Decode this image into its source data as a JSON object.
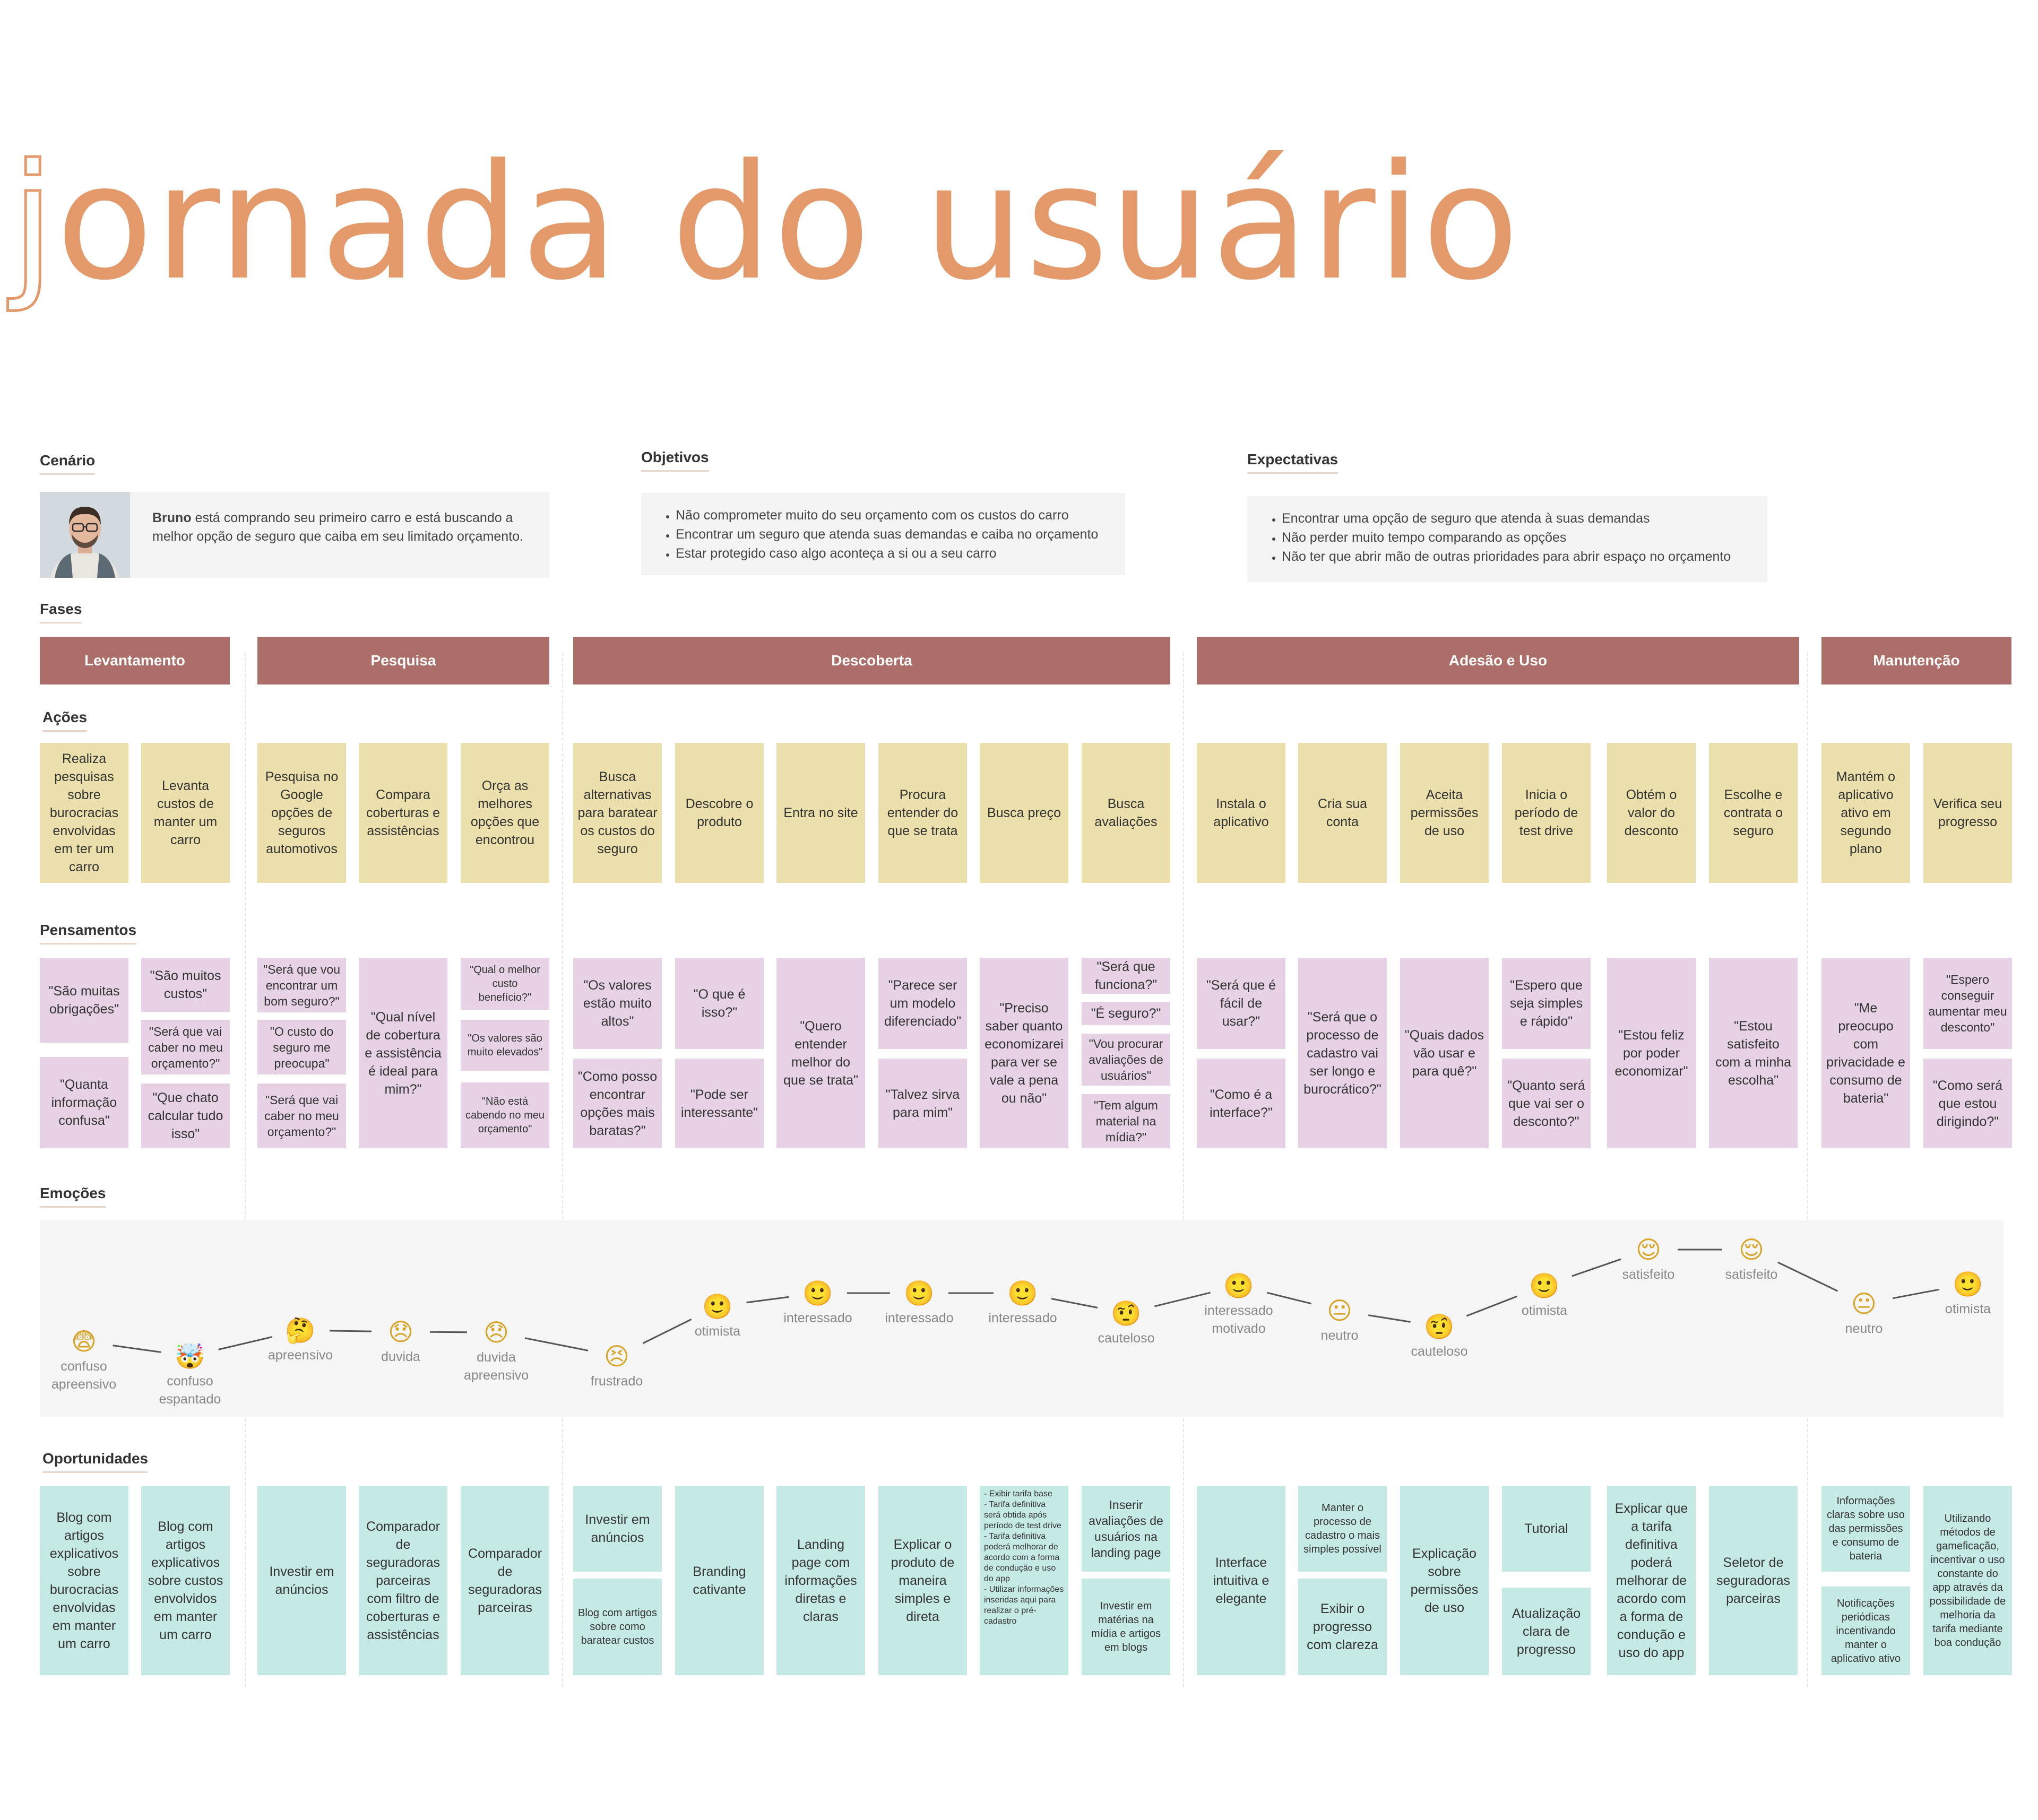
{
  "title": {
    "first_letter": "j",
    "rest": "ornada do usuário"
  },
  "scenario": {
    "label": "Cenário",
    "name": "Bruno",
    "text": " está comprando seu primeiro carro e está buscando a melhor opção de seguro que caiba em seu limitado orçamento."
  },
  "objectives": {
    "label": "Objetivos",
    "items": [
      "Não comprometer muito do seu orçamento com os custos do carro",
      "Encontrar um seguro que atenda suas demandas e caiba no orçamento",
      "Estar protegido caso algo aconteça a si ou a seu carro"
    ]
  },
  "expectations": {
    "label": "Expectativas",
    "items": [
      "Encontrar uma opção de seguro que atenda à suas demandas",
      "Não perder muito tempo comparando as opções",
      "Não ter que abrir mão de outras prioridades para abrir espaço no orçamento"
    ]
  },
  "sections": {
    "phases": "Fases",
    "actions": "Ações",
    "thoughts": "Pensamentos",
    "emotions": "Emoções",
    "opportunities": "Oportunidades"
  },
  "phases": [
    "Levantamento",
    "Pesquisa",
    "Descoberta",
    "Adesão e Uso",
    "Manutenção"
  ],
  "actions": [
    "Realiza pesquisas sobre burocracias envolvidas em ter um carro",
    "Levanta custos de manter um carro",
    "Pesquisa no Google opções de seguros automotivos",
    "Compara coberturas e assistências",
    "Orça as melhores opções que encontrou",
    "Busca alternativas para baratear os custos do seguro",
    "Descobre o produto",
    "Entra no site",
    "Procura entender do que se trata",
    "Busca preço",
    "Busca avaliações",
    "Instala o aplicativo",
    "Cria sua conta",
    "Aceita permissões de uso",
    "Inicia o período de test drive",
    "Obtém o valor do desconto",
    "Escolhe e contrata o seguro",
    "Mantém o aplicativo ativo em segundo plano",
    "Verifica seu progresso"
  ],
  "thoughts": [
    [
      "\"São muitas obrigações\"",
      "\"Quanta informação confusa\""
    ],
    [
      "\"São muitos custos\"",
      "\"Será que vai caber no meu orçamento?\"",
      "\"Que chato calcular tudo isso\""
    ],
    [
      "\"Será que vou encontrar um bom seguro?\"",
      "\"O custo do seguro me preocupa\"",
      "\"Será que vai caber no meu orçamento?\""
    ],
    [
      "\"Qual nível de cobertura e assistência é ideal para mim?\""
    ],
    [
      "\"Qual o melhor custo benefício?\"",
      "\"Os valores são muito elevados\"",
      "\"Não está cabendo no meu orçamento\""
    ],
    [
      "\"Os valores estão muito altos\"",
      "\"Como posso encontrar opções mais baratas?\""
    ],
    [
      "\"O que é isso?\"",
      "\"Pode ser interessante\""
    ],
    [
      "\"Quero entender melhor do que se trata\""
    ],
    [
      "\"Parece ser um modelo diferenciado\"",
      "\"Talvez sirva para mim\""
    ],
    [
      "\"Preciso saber quanto economizarei para ver se vale a pena ou não\""
    ],
    [
      "\"Será que funciona?\"",
      "\"É seguro?\"",
      "\"Vou procurar avaliações de usuários\"",
      "\"Tem algum material na mídia?\""
    ],
    [
      "\"Será que é fácil de usar?\"",
      "\"Como é a interface?\""
    ],
    [
      "\"Será que o processo de cadastro vai ser longo e burocrático?\""
    ],
    [
      "\"Quais dados vão usar e para quê?\""
    ],
    [
      "\"Espero que seja simples e rápido\"",
      "\"Quanto será que vai ser o desconto?\""
    ],
    [
      "\"Estou feliz por poder economizar\""
    ],
    [
      "\"Estou satisfeito com a minha escolha\""
    ],
    [
      "\"Me preocupo com privacidade e consumo de bateria\""
    ],
    [
      "\"Espero conseguir aumentar meu desconto\"",
      "\"Como será que estou dirigindo?\""
    ]
  ],
  "emotions": [
    {
      "icon": "anxious-face-icon",
      "glyph": "😨",
      "label": "confuso apreensivo"
    },
    {
      "icon": "exploding-head-icon",
      "glyph": "🤯",
      "label": "confuso espantado"
    },
    {
      "icon": "thinking-face-icon",
      "glyph": "🤔",
      "label": "apreensivo"
    },
    {
      "icon": "disappointed-face-icon",
      "glyph": "😞",
      "label": "duvida"
    },
    {
      "icon": "disappointed-face-icon",
      "glyph": "😞",
      "label": "duvida apreensivo"
    },
    {
      "icon": "persevering-face-icon",
      "glyph": "😣",
      "label": "frustrado"
    },
    {
      "icon": "smiling-face-icon",
      "glyph": "🙂",
      "label": "otimista"
    },
    {
      "icon": "smiling-face-icon",
      "glyph": "🙂",
      "label": "interessado"
    },
    {
      "icon": "smiling-face-icon",
      "glyph": "🙂",
      "label": "interessado"
    },
    {
      "icon": "smiling-face-icon",
      "glyph": "🙂",
      "label": "interessado"
    },
    {
      "icon": "raised-eyebrow-face-icon",
      "glyph": "🤨",
      "label": "cauteloso"
    },
    {
      "icon": "smiling-face-icon",
      "glyph": "🙂",
      "label": "interessado motivado"
    },
    {
      "icon": "neutral-face-icon",
      "glyph": "😐",
      "label": "neutro"
    },
    {
      "icon": "raised-eyebrow-face-icon",
      "glyph": "🤨",
      "label": "cauteloso"
    },
    {
      "icon": "smiling-face-icon",
      "glyph": "🙂",
      "label": "otimista"
    },
    {
      "icon": "relieved-face-icon",
      "glyph": "😌",
      "label": "satisfeito"
    },
    {
      "icon": "relieved-face-icon",
      "glyph": "😌",
      "label": "satisfeito"
    },
    {
      "icon": "neutral-face-icon",
      "glyph": "😐",
      "label": "neutro"
    },
    {
      "icon": "smiling-face-icon",
      "glyph": "🙂",
      "label": "otimista"
    }
  ],
  "opportunities": [
    [
      "Blog com artigos explicativos sobre burocracias envolvidas em manter um carro"
    ],
    [
      "Blog com artigos explicativos sobre custos envolvidos em manter um carro"
    ],
    [
      "Investir em anúncios"
    ],
    [
      "Comparador de seguradoras parceiras com filtro de coberturas e assistências"
    ],
    [
      "Comparador de seguradoras parceiras"
    ],
    [
      "Investir em anúncios",
      "Blog com artigos sobre como baratear custos"
    ],
    [
      "Branding cativante"
    ],
    [
      "Landing page com informações diretas e claras"
    ],
    [
      "Explicar o produto de maneira simples e direta"
    ],
    [
      "- Exibir tarifa base\n- Tarifa definitiva será obtida após período de test drive\n- Tarifa definitiva poderá melhorar de acordo com a forma de condução e uso do app\n- Utilizar informações inseridas aqui para realizar o pré-cadastro"
    ],
    [
      "Inserir avaliações de usuários na landing page",
      "Investir em matérias na mídia e artigos em blogs"
    ],
    [
      "Interface intuitiva e elegante"
    ],
    [
      "Manter o processo de cadastro o mais simples possível",
      "Exibir o progresso com clareza"
    ],
    [
      "Explicação sobre permissões de uso"
    ],
    [
      "Tutorial",
      "Atualização clara de progresso"
    ],
    [
      "Explicar que a tarifa definitiva poderá melhorar de acordo com a forma de condução e uso do app"
    ],
    [
      "Seletor de seguradoras parceiras"
    ],
    [
      "Informações claras sobre uso das permissões e consumo de bateria",
      "Notificações periódicas incentivando manter o aplicativo ativo"
    ],
    [
      "Utilizando métodos de gameficação, incentivar o uso constante do app através da possibilidade de melhoria da tarifa mediante boa condução"
    ]
  ],
  "colors": {
    "title": "#e4996a",
    "phase": "#ac6e68",
    "action": "#ebdfab",
    "thought": "#e7d2e5",
    "opportunity": "#c5e9e5"
  }
}
